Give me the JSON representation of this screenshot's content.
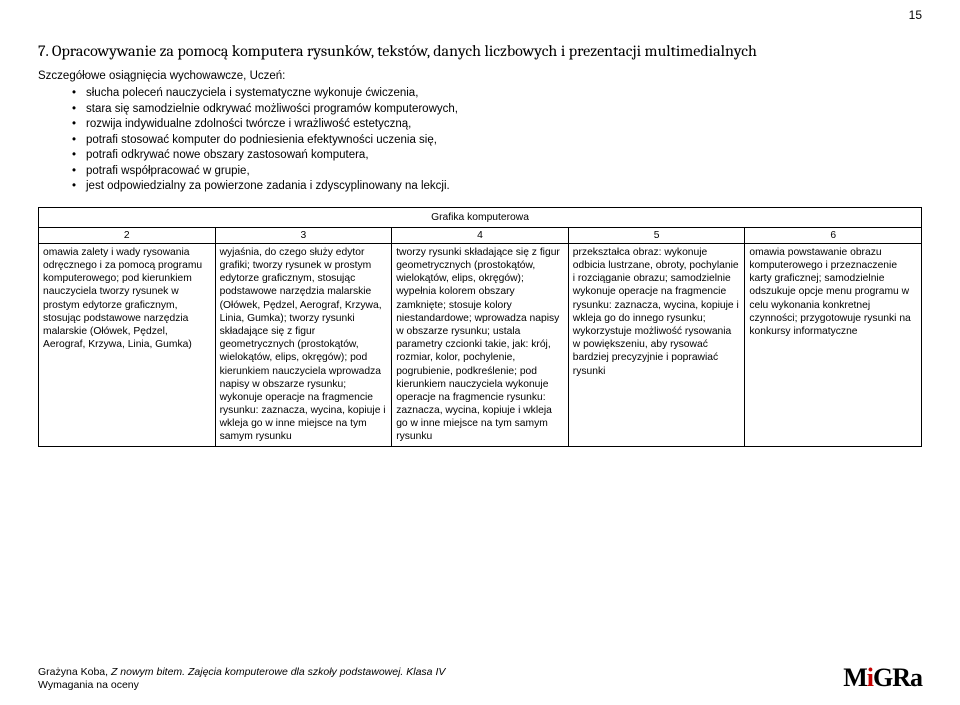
{
  "page_number": "15",
  "heading": "7. Opracowywanie za pomocą komputera rysunków, tekstów, danych liczbowych  i prezentacji multimedialnych",
  "subheading": "Szczegółowe osiągnięcia wychowawcze, Uczeń:",
  "bullets": [
    "słucha poleceń nauczyciela i systematyczne wykonuje ćwiczenia,",
    "stara się samodzielnie odkrywać możliwości programów komputerowych,",
    "rozwija indywidualne zdolności twórcze i wrażliwość estetyczną,",
    "potrafi stosować komputer do podniesienia efektywności uczenia się,",
    "potrafi odkrywać nowe obszary zastosowań komputera,",
    "potrafi współpracować w grupie,",
    "jest odpowiedzialny za powierzone zadania i zdyscyplinowany na lekcji."
  ],
  "table": {
    "title": "Grafika komputerowa",
    "col_nums": [
      "2",
      "3",
      "4",
      "5",
      "6"
    ],
    "cells": [
      "omawia zalety i wady rysowania odręcznego i za pomocą programu komputerowego; pod kierunkiem nauczyciela tworzy rysunek w prostym edytorze graficznym, stosując podstawowe narzędzia malarskie (Ołówek, Pędzel, Aerograf, Krzywa, Linia, Gumka)",
      "wyjaśnia, do czego służy edytor grafiki; tworzy rysunek w prostym edytorze graficznym, stosując podstawowe narzędzia malarskie (Ołówek, Pędzel, Aerograf, Krzywa, Linia, Gumka); tworzy rysunki składające się z figur geometrycznych (prostokątów, wielokątów, elips, okręgów); pod kierunkiem nauczyciela wprowadza napisy w obszarze rysunku; wykonuje operacje na fragmencie rysunku: zaznacza, wycina, kopiuje i wkleja go w inne miejsce na tym samym rysunku",
      "tworzy rysunki składające się z figur geometrycznych (prostokątów, wielokątów, elips, okręgów); wypełnia kolorem obszary zamknięte; stosuje kolory niestandardowe; wprowadza napisy w obszarze rysunku; ustala parametry czcionki takie, jak: krój, rozmiar, kolor, pochylenie, pogrubienie, podkreślenie; pod kierunkiem nauczyciela wykonuje operacje na fragmencie rysunku: zaznacza, wycina, kopiuje i wkleja go w inne miejsce na tym samym rysunku",
      "przekształca obraz: wykonuje odbicia lustrzane, obroty, pochylanie i rozciąganie obrazu; samodzielnie wykonuje operacje na fragmencie rysunku: zaznacza, wycina, kopiuje i wkleja go do innego rysunku; wykorzystuje możliwość rysowania w powiększeniu, aby rysować bardziej precyzyjnie i poprawiać rysunki",
      "omawia powstawanie obrazu komputerowego i przeznaczenie karty graficznej; samodzielnie odszukuje opcje menu programu w celu wykonania konkretnej czynności; przygotowuje rysunki na konkursy informatyczne"
    ]
  },
  "footer": {
    "line1_a": "Grażyna Koba, ",
    "line1_b": "Z nowym bitem. Zajęcia komputerowe dla szkoły podstawowej. Klasa IV",
    "line2": "Wymagania na oceny"
  },
  "logo": {
    "m": "M",
    "i": "i",
    "g": "G",
    "r": "R",
    "a": "a"
  }
}
